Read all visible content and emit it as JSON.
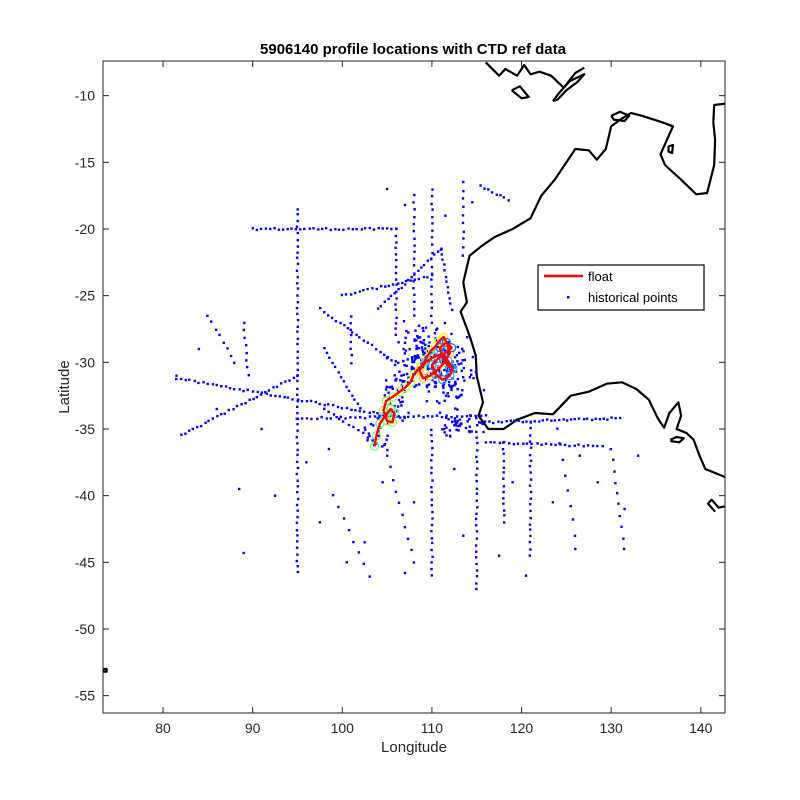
{
  "chart_data": {
    "type": "scatter",
    "title": "5906140 profile locations with CTD ref data",
    "xlabel": "Longitude",
    "ylabel": "Latitude",
    "xlim": [
      73.3,
      142.7
    ],
    "ylim": [
      -56.3,
      -7.4
    ],
    "xticks": [
      80,
      90,
      100,
      110,
      120,
      130,
      140
    ],
    "yticks": [
      -10,
      -15,
      -20,
      -25,
      -30,
      -35,
      -40,
      -45,
      -50,
      -55
    ],
    "grid": false,
    "legend": {
      "placement": "right",
      "entries": [
        {
          "label": "float",
          "color": "#ff0000",
          "style": "line"
        },
        {
          "label": "historical points",
          "color": "#0000ff",
          "style": "marker"
        }
      ]
    },
    "coastline_color": "#000000",
    "float_color": "#ff0000",
    "historical_color": "#0000ff",
    "series": [
      {
        "name": "float",
        "type": "line",
        "x": [
          103.6,
          103.8,
          104.2,
          104.8,
          105.4,
          105.8,
          105.6,
          105.0,
          104.6,
          104.9,
          105.6,
          106.4,
          107.0,
          107.6,
          108.0,
          108.8,
          109.3,
          109.8,
          110.4,
          110.8,
          111.3,
          111.7,
          112.0,
          111.4,
          110.6,
          109.8,
          109.0,
          108.6,
          109.3,
          110.2,
          111.0,
          111.8,
          112.3,
          112.0,
          111.2,
          110.4,
          110.0,
          110.7,
          111.5,
          112.2,
          111.6,
          110.9,
          111.3,
          112.0
        ],
        "y": [
          -36.3,
          -35.5,
          -34.6,
          -34.0,
          -33.5,
          -33.8,
          -34.5,
          -34.4,
          -33.6,
          -32.9,
          -32.6,
          -32.2,
          -31.9,
          -31.5,
          -30.9,
          -30.3,
          -29.8,
          -29.2,
          -28.8,
          -28.4,
          -28.1,
          -28.6,
          -29.3,
          -30.0,
          -30.6,
          -31.0,
          -31.2,
          -30.6,
          -30.0,
          -29.6,
          -29.4,
          -29.9,
          -30.5,
          -31.0,
          -31.3,
          -30.9,
          -30.2,
          -29.7,
          -29.3,
          -28.9,
          -28.5,
          -28.9,
          -29.8,
          -30.4
        ]
      },
      {
        "name": "historical points",
        "type": "scatter",
        "tracks": [
          {
            "x0": 95.0,
            "y0": -18.5,
            "x1": 95.0,
            "y1": -45.8,
            "n": 60
          },
          {
            "x0": 90.0,
            "y0": -20.0,
            "x1": 106.0,
            "y1": -20.0,
            "n": 34
          },
          {
            "x0": 106.0,
            "y0": -20.0,
            "x1": 106.0,
            "y1": -28.0,
            "n": 18
          },
          {
            "x0": 82.0,
            "y0": -35.5,
            "x1": 95.0,
            "y1": -31.0,
            "n": 30
          },
          {
            "x0": 81.5,
            "y0": -31.2,
            "x1": 107.0,
            "y1": -34.2,
            "n": 52
          },
          {
            "x0": 95.0,
            "y0": -34.2,
            "x1": 116.0,
            "y1": -34.0,
            "n": 40
          },
          {
            "x0": 97.5,
            "y0": -26.0,
            "x1": 106.0,
            "y1": -30.0,
            "n": 20
          },
          {
            "x0": 98.0,
            "y0": -29.0,
            "x1": 102.0,
            "y1": -33.5,
            "n": 14
          },
          {
            "x0": 100.0,
            "y0": -25.0,
            "x1": 110.0,
            "y1": -23.5,
            "n": 22
          },
          {
            "x0": 104.0,
            "y0": -26.0,
            "x1": 111.0,
            "y1": -21.5,
            "n": 20
          },
          {
            "x0": 111.0,
            "y0": -21.5,
            "x1": 112.2,
            "y1": -26.0,
            "n": 12
          },
          {
            "x0": 108.0,
            "y0": -17.5,
            "x1": 108.0,
            "y1": -26.5,
            "n": 18
          },
          {
            "x0": 110.0,
            "y0": -17.0,
            "x1": 110.0,
            "y1": -27.0,
            "n": 20
          },
          {
            "x0": 113.5,
            "y0": -16.5,
            "x1": 113.5,
            "y1": -22.0,
            "n": 10
          },
          {
            "x0": 115.5,
            "y0": -16.8,
            "x1": 118.5,
            "y1": -17.8,
            "n": 8
          },
          {
            "x0": 98.0,
            "y0": -33.5,
            "x1": 105.0,
            "y1": -36.5,
            "n": 14
          },
          {
            "x0": 110.0,
            "y0": -35.0,
            "x1": 110.0,
            "y1": -46.0,
            "n": 24
          },
          {
            "x0": 115.0,
            "y0": -34.2,
            "x1": 115.0,
            "y1": -47.0,
            "n": 28
          },
          {
            "x0": 116.0,
            "y0": -34.5,
            "x1": 131.0,
            "y1": -34.2,
            "n": 34
          },
          {
            "x0": 116.0,
            "y0": -36.0,
            "x1": 129.0,
            "y1": -36.3,
            "n": 26
          },
          {
            "x0": 121.0,
            "y0": -34.5,
            "x1": 121.0,
            "y1": -44.5,
            "n": 22
          },
          {
            "x0": 118.0,
            "y0": -36.0,
            "x1": 118.0,
            "y1": -42.0,
            "n": 14
          },
          {
            "x0": 99.0,
            "y0": -40.0,
            "x1": 103.0,
            "y1": -46.0,
            "n": 8
          },
          {
            "x0": 105.0,
            "y0": -37.0,
            "x1": 108.0,
            "y1": -45.0,
            "n": 10
          },
          {
            "x0": 85.0,
            "y0": -26.5,
            "x1": 88.0,
            "y1": -30.0,
            "n": 8
          },
          {
            "x0": 89.0,
            "y0": -27.0,
            "x1": 89.5,
            "y1": -31.0,
            "n": 8
          },
          {
            "x0": 101.0,
            "y0": -26.5,
            "x1": 101.0,
            "y1": -30.0,
            "n": 8
          },
          {
            "x0": 130.0,
            "y0": -36.5,
            "x1": 131.5,
            "y1": -44.0,
            "n": 10
          },
          {
            "x0": 124.0,
            "y0": -35.0,
            "x1": 126.0,
            "y1": -43.0,
            "n": 8
          }
        ],
        "clusters": [
          {
            "cx": 109.5,
            "cy": -30.0,
            "sx": 3.0,
            "sy": 2.0,
            "n": 180
          },
          {
            "cx": 112.5,
            "cy": -31.5,
            "sx": 2.2,
            "sy": 2.0,
            "n": 60
          },
          {
            "cx": 106.0,
            "cy": -32.5,
            "sx": 1.5,
            "sy": 1.5,
            "n": 40
          },
          {
            "cx": 113.0,
            "cy": -34.8,
            "sx": 2.0,
            "sy": 0.7,
            "n": 40
          },
          {
            "cx": 104.0,
            "cy": -35.0,
            "sx": 1.0,
            "sy": 1.2,
            "n": 20
          }
        ],
        "scattered": [
          [
            81.5,
            -31.0
          ],
          [
            84.0,
            -29.0
          ],
          [
            88.5,
            -39.5
          ],
          [
            89.0,
            -44.3
          ],
          [
            92.5,
            -40.0
          ],
          [
            97.5,
            -42.0
          ],
          [
            100.5,
            -45.0
          ],
          [
            102.5,
            -43.5
          ],
          [
            107.0,
            -45.8
          ],
          [
            108.0,
            -40.5
          ],
          [
            112.5,
            -38.0
          ],
          [
            117.5,
            -44.5
          ],
          [
            123.5,
            -40.5
          ],
          [
            126.0,
            -44.0
          ],
          [
            131.5,
            -41.0
          ],
          [
            128.5,
            -39.0
          ],
          [
            120.5,
            -46.0
          ],
          [
            113.5,
            -43.0
          ],
          [
            104.5,
            -39.0
          ],
          [
            98.5,
            -36.5
          ],
          [
            86.0,
            -33.5
          ],
          [
            91.0,
            -35.0
          ],
          [
            96.0,
            -37.5
          ],
          [
            111.5,
            -19.0
          ],
          [
            114.5,
            -18.0
          ],
          [
            105.0,
            -17.0
          ],
          [
            107.0,
            -18.2
          ],
          [
            119.0,
            -39.0
          ],
          [
            126.5,
            -37.0
          ],
          [
            133.0,
            -37.0
          ]
        ]
      }
    ],
    "coast": {
      "australia_west": [
        [
          116.0,
          -7.5
        ],
        [
          117.5,
          -8.5
        ],
        [
          118.2,
          -8.0
        ],
        [
          119.5,
          -8.5
        ],
        [
          120.3,
          -7.7
        ],
        [
          121.0,
          -8.4
        ],
        [
          122.0,
          -8.2
        ],
        [
          123.3,
          -8.5
        ],
        [
          124.7,
          -9.4
        ],
        [
          126.0,
          -8.3
        ],
        [
          127.0,
          -7.9
        ]
      ],
      "australia_main": [
        [
          142.7,
          -10.6
        ],
        [
          141.5,
          -10.7
        ],
        [
          141.4,
          -12.0
        ],
        [
          141.6,
          -13.3
        ],
        [
          141.5,
          -15.2
        ],
        [
          140.7,
          -17.3
        ],
        [
          139.5,
          -17.4
        ],
        [
          137.8,
          -16.3
        ],
        [
          136.0,
          -15.2
        ],
        [
          135.5,
          -14.4
        ],
        [
          136.5,
          -12.9
        ],
        [
          136.9,
          -12.3
        ],
        [
          135.7,
          -12.0
        ],
        [
          133.4,
          -11.5
        ],
        [
          132.2,
          -11.3
        ],
        [
          131.0,
          -11.8
        ],
        [
          130.0,
          -12.3
        ],
        [
          129.4,
          -14.0
        ],
        [
          128.4,
          -14.8
        ],
        [
          127.5,
          -14.1
        ],
        [
          126.0,
          -14.0
        ],
        [
          125.0,
          -15.0
        ],
        [
          123.7,
          -16.3
        ],
        [
          122.2,
          -17.5
        ],
        [
          121.0,
          -19.2
        ],
        [
          119.0,
          -20.0
        ],
        [
          117.0,
          -20.6
        ],
        [
          115.5,
          -21.3
        ],
        [
          114.2,
          -22.0
        ],
        [
          113.5,
          -24.0
        ],
        [
          113.9,
          -25.5
        ],
        [
          113.2,
          -26.2
        ],
        [
          114.2,
          -28.0
        ],
        [
          114.9,
          -29.5
        ],
        [
          115.0,
          -31.0
        ],
        [
          115.7,
          -33.0
        ],
        [
          115.2,
          -34.0
        ],
        [
          116.3,
          -35.0
        ],
        [
          118.0,
          -35.0
        ],
        [
          119.5,
          -34.3
        ],
        [
          121.5,
          -33.8
        ],
        [
          123.5,
          -33.9
        ],
        [
          125.5,
          -32.5
        ],
        [
          127.5,
          -32.2
        ],
        [
          129.5,
          -31.6
        ],
        [
          131.2,
          -31.5
        ],
        [
          132.8,
          -32.0
        ],
        [
          134.2,
          -32.8
        ],
        [
          135.2,
          -34.2
        ],
        [
          135.9,
          -34.9
        ],
        [
          136.5,
          -33.8
        ],
        [
          137.5,
          -33.0
        ],
        [
          137.8,
          -34.0
        ],
        [
          137.3,
          -35.0
        ],
        [
          138.4,
          -35.3
        ],
        [
          139.2,
          -35.8
        ],
        [
          139.8,
          -36.9
        ],
        [
          140.5,
          -38.0
        ],
        [
          141.6,
          -38.3
        ],
        [
          142.7,
          -38.6
        ]
      ],
      "kangaroo_island": [
        [
          136.6,
          -35.8
        ],
        [
          137.3,
          -35.6
        ],
        [
          138.1,
          -35.7
        ],
        [
          137.6,
          -36.0
        ],
        [
          136.6,
          -35.9
        ]
      ],
      "tasmania_n": [
        [
          142.7,
          -40.8
        ],
        [
          142.0,
          -40.9
        ],
        [
          141.2,
          -40.3
        ],
        [
          140.8,
          -40.6
        ],
        [
          141.6,
          -41.2
        ]
      ],
      "melville": [
        [
          130.0,
          -11.5
        ],
        [
          131.0,
          -11.2
        ],
        [
          132.0,
          -11.5
        ],
        [
          131.5,
          -11.9
        ],
        [
          130.3,
          -11.8
        ],
        [
          130.0,
          -11.5
        ]
      ],
      "groote": [
        [
          136.4,
          -13.8
        ],
        [
          136.9,
          -13.7
        ],
        [
          136.8,
          -14.3
        ],
        [
          136.4,
          -14.2
        ],
        [
          136.4,
          -13.8
        ]
      ],
      "timor": [
        [
          123.5,
          -10.4
        ],
        [
          124.3,
          -9.7
        ],
        [
          125.4,
          -8.9
        ],
        [
          127.0,
          -8.4
        ],
        [
          126.2,
          -9.0
        ],
        [
          125.0,
          -9.6
        ],
        [
          124.0,
          -10.3
        ],
        [
          123.5,
          -10.4
        ]
      ],
      "sumba": [
        [
          118.9,
          -9.6
        ],
        [
          119.8,
          -9.3
        ],
        [
          120.8,
          -10.1
        ],
        [
          120.0,
          -10.2
        ],
        [
          118.9,
          -9.6
        ]
      ],
      "heard": [
        [
          73.3,
          -53.0
        ],
        [
          73.7,
          -53.0
        ],
        [
          73.7,
          -53.2
        ],
        [
          73.3,
          -53.2
        ],
        [
          73.3,
          -53.0
        ]
      ]
    }
  }
}
